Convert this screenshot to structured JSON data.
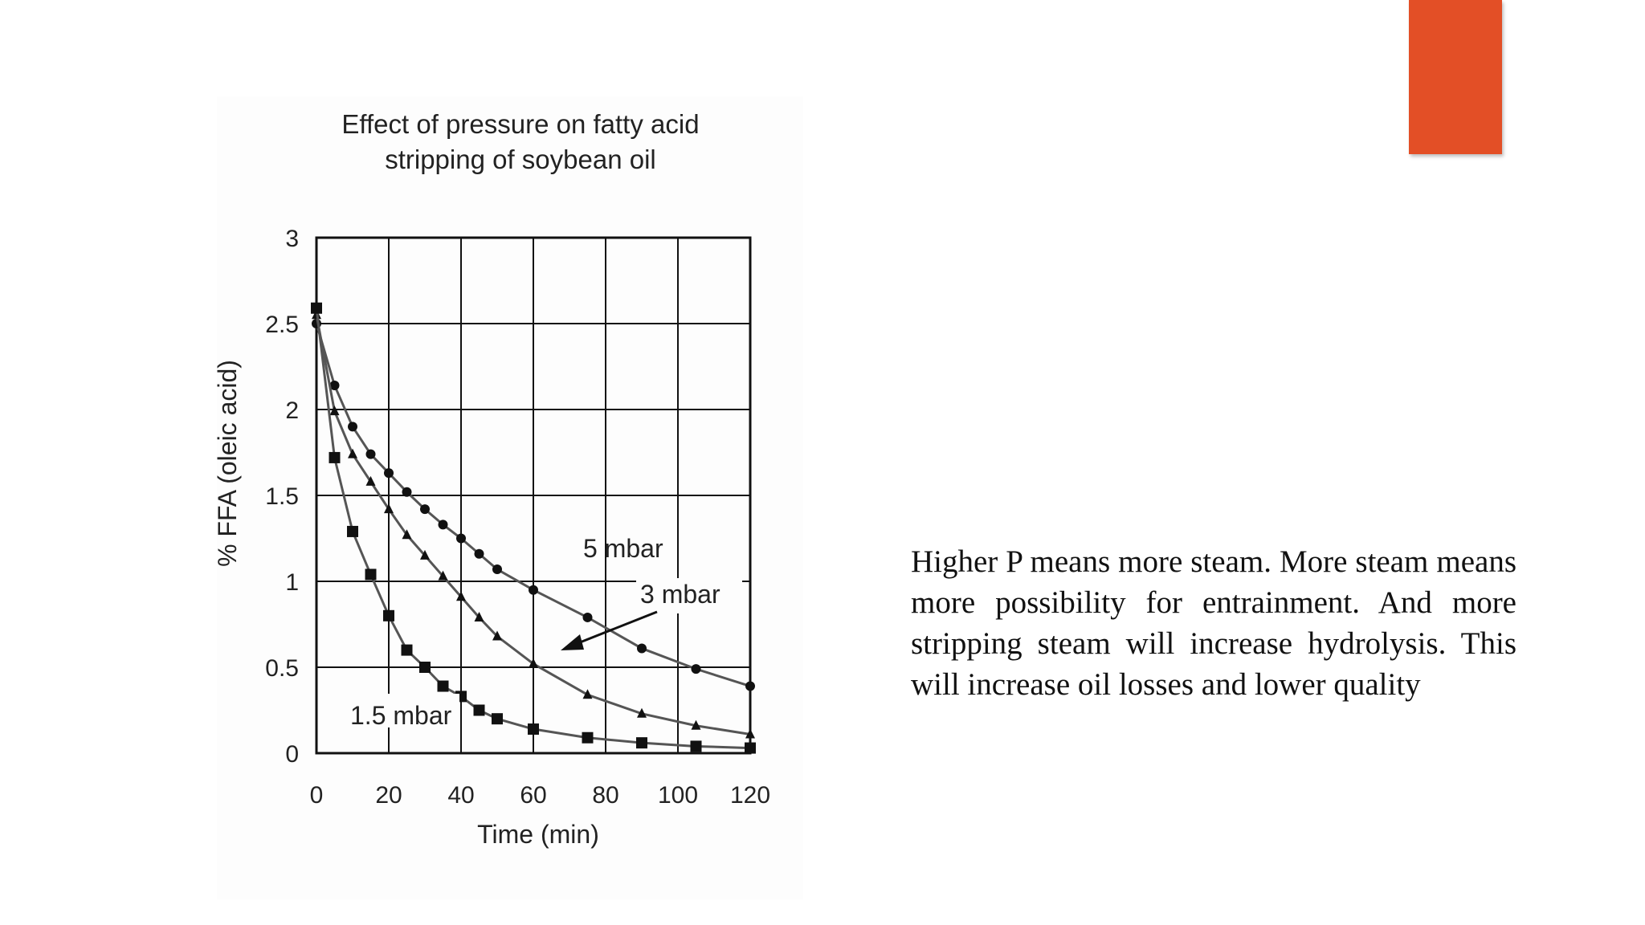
{
  "slide": {
    "accent_color": "#e34f26",
    "body_text": "Higher P means more steam.  More steam means more possibility for entrainment. And more stripping steam will increase hydrolysis. This will increase oil losses and lower quality"
  },
  "chart_data": {
    "type": "line",
    "title_lines": [
      "Effect of pressure on fatty acid",
      "stripping of soybean oil"
    ],
    "xlabel": "Time (min)",
    "ylabel": "% FFA (oleic acid)",
    "xlim": [
      0,
      120
    ],
    "ylim": [
      0,
      3
    ],
    "xticks": [
      "0",
      "20",
      "40",
      "60",
      "80",
      "100",
      "120"
    ],
    "yticks": [
      "0",
      "0.5",
      "1",
      "1.5",
      "2",
      "2.5",
      "3"
    ],
    "grid": true,
    "series": [
      {
        "name": "5 mbar",
        "marker": "circle",
        "x": [
          0,
          5,
          10,
          15,
          20,
          25,
          30,
          35,
          40,
          45,
          50,
          60,
          75,
          90,
          105,
          120
        ],
        "y": [
          2.5,
          2.14,
          1.9,
          1.74,
          1.63,
          1.52,
          1.42,
          1.33,
          1.25,
          1.16,
          1.07,
          0.95,
          0.79,
          0.61,
          0.49,
          0.39
        ]
      },
      {
        "name": "3 mbar",
        "marker": "triangle",
        "x": [
          0,
          5,
          10,
          15,
          20,
          25,
          30,
          35,
          40,
          45,
          50,
          60,
          75,
          90,
          105,
          120
        ],
        "y": [
          2.55,
          1.99,
          1.74,
          1.58,
          1.42,
          1.27,
          1.15,
          1.03,
          0.91,
          0.79,
          0.68,
          0.52,
          0.34,
          0.23,
          0.16,
          0.11
        ]
      },
      {
        "name": "1.5 mbar",
        "marker": "square",
        "x": [
          0,
          5,
          10,
          15,
          20,
          25,
          30,
          35,
          40,
          45,
          50,
          60,
          75,
          90,
          105,
          120
        ],
        "y": [
          2.59,
          1.72,
          1.29,
          1.04,
          0.8,
          0.6,
          0.5,
          0.39,
          0.33,
          0.25,
          0.2,
          0.14,
          0.09,
          0.06,
          0.04,
          0.03
        ]
      }
    ],
    "annotations": [
      "5 mbar",
      "3 mbar",
      "1.5 mbar"
    ]
  }
}
